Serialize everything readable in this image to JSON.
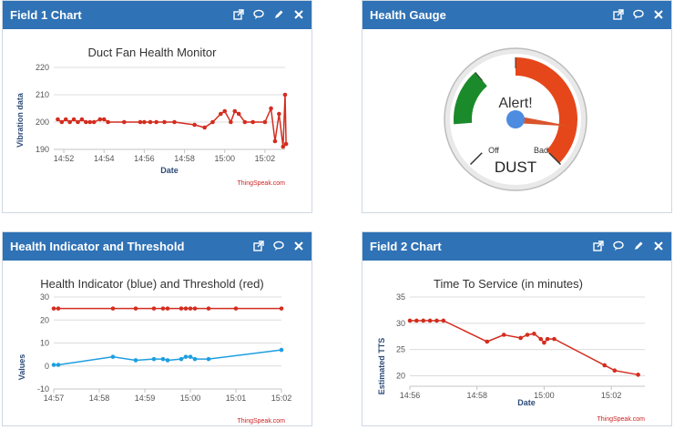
{
  "panels": {
    "field1": {
      "title": "Field 1 Chart",
      "chart_data": {
        "type": "line",
        "title": "Duct Fan Health Monitor",
        "xlabel": "Date",
        "ylabel": "Vibration data",
        "x_ticks": [
          "14:52",
          "14:54",
          "14:56",
          "14:58",
          "15:00",
          "15:02"
        ],
        "y_ticks": [
          190,
          200,
          210,
          220
        ],
        "ylim": [
          190,
          220
        ],
        "xlim": [
          "14:51.5",
          "15:03"
        ],
        "grid": true,
        "series": [
          {
            "color": "#d32d1f",
            "points": [
              [
                "14:51.7",
                201
              ],
              [
                "14:51.9",
                200
              ],
              [
                "14:52.1",
                201
              ],
              [
                "14:52.3",
                200
              ],
              [
                "14:52.5",
                201
              ],
              [
                "14:52.7",
                200
              ],
              [
                "14:52.9",
                201
              ],
              [
                "14:53.1",
                200
              ],
              [
                "14:53.3",
                200
              ],
              [
                "14:53.5",
                200
              ],
              [
                "14:53.8",
                201
              ],
              [
                "14:54.0",
                201
              ],
              [
                "14:54.2",
                200
              ],
              [
                "14:55.0",
                200
              ],
              [
                "14:55.8",
                200
              ],
              [
                "14:56.0",
                200
              ],
              [
                "14:56.3",
                200
              ],
              [
                "14:56.6",
                200
              ],
              [
                "14:57.0",
                200
              ],
              [
                "14:57.5",
                200
              ],
              [
                "14:58.5",
                199
              ],
              [
                "14:59.0",
                198
              ],
              [
                "14:59.4",
                200
              ],
              [
                "14:59.8",
                203
              ],
              [
                "15:00.0",
                204
              ],
              [
                "15:00.3",
                200
              ],
              [
                "15:00.5",
                204
              ],
              [
                "15:00.7",
                203
              ],
              [
                "15:01.0",
                200
              ],
              [
                "15:01.4",
                200
              ],
              [
                "15:02.0",
                200
              ],
              [
                "15:02.3",
                205
              ],
              [
                "15:02.5",
                193
              ],
              [
                "15:02.7",
                203
              ],
              [
                "15:02.9",
                191
              ],
              [
                "15:03.0",
                210
              ],
              [
                "15:03.05",
                192
              ]
            ]
          }
        ]
      },
      "credit": "ThingSpeak.com"
    },
    "gauge": {
      "title": "Health Gauge",
      "gauge_data": {
        "type": "gauge",
        "label_top": "Alert!",
        "label_bottom": "DUST",
        "min_label": "Off",
        "max_label": "Bad",
        "value_fraction": 0.86,
        "zones": [
          {
            "from": 0.15,
            "to": 0.35,
            "color": "#1b8a2a"
          },
          {
            "from": 0.5,
            "to": 1.0,
            "color": "#e5471a"
          }
        ]
      }
    },
    "indicator": {
      "title": "Health Indicator and Threshold",
      "chart_data": {
        "type": "line",
        "title": "Health Indicator (blue) and Threshold (red)",
        "xlabel": "",
        "ylabel": "Values",
        "x_ticks": [
          "14:57",
          "14:58",
          "14:59",
          "15:00",
          "15:01",
          "15:02"
        ],
        "y_ticks": [
          -10,
          0,
          10,
          20,
          30
        ],
        "ylim": [
          -10,
          30
        ],
        "xlim": [
          "14:57",
          "15:02"
        ],
        "grid": true,
        "series": [
          {
            "color": "#d32d1f",
            "points": [
              [
                "14:57.0",
                25
              ],
              [
                "14:57.1",
                25
              ],
              [
                "14:58.3",
                25
              ],
              [
                "14:58.8",
                25
              ],
              [
                "14:59.2",
                25
              ],
              [
                "14:59.4",
                25
              ],
              [
                "14:59.5",
                25
              ],
              [
                "14:59.8",
                25
              ],
              [
                "14:59.9",
                25
              ],
              [
                "15:00.0",
                25
              ],
              [
                "15:00.1",
                25
              ],
              [
                "15:00.4",
                25
              ],
              [
                "15:01.0",
                25
              ],
              [
                "15:02.0",
                25
              ]
            ]
          },
          {
            "color": "#1e9ee0",
            "points": [
              [
                "14:57.0",
                0.5
              ],
              [
                "14:57.1",
                0.5
              ],
              [
                "14:58.3",
                4
              ],
              [
                "14:58.8",
                2.5
              ],
              [
                "14:59.2",
                3
              ],
              [
                "14:59.4",
                3
              ],
              [
                "14:59.5",
                2.5
              ],
              [
                "14:59.8",
                3
              ],
              [
                "14:59.9",
                4
              ],
              [
                "15:00.0",
                4
              ],
              [
                "15:00.1",
                3
              ],
              [
                "15:00.4",
                3
              ],
              [
                "15:02.0",
                7
              ]
            ]
          }
        ]
      },
      "credit": "ThingSpeak.com"
    },
    "field2": {
      "title": "Field 2 Chart",
      "chart_data": {
        "type": "line",
        "title": "Time To Service (in minutes)",
        "xlabel": "Date",
        "ylabel": "Estimated TTS",
        "x_ticks": [
          "14:56",
          "14:58",
          "15:00",
          "15:02"
        ],
        "y_ticks": [
          20,
          25,
          30,
          35
        ],
        "ylim": [
          18,
          35
        ],
        "xlim": [
          "14:56",
          "15:03"
        ],
        "grid": true,
        "series": [
          {
            "color": "#d32d1f",
            "points": [
              [
                "14:56.0",
                30.5
              ],
              [
                "14:56.2",
                30.5
              ],
              [
                "14:56.4",
                30.5
              ],
              [
                "14:56.6",
                30.5
              ],
              [
                "14:56.8",
                30.5
              ],
              [
                "14:57.0",
                30.5
              ],
              [
                "14:58.3",
                26.5
              ],
              [
                "14:58.8",
                27.8
              ],
              [
                "14:59.3",
                27.2
              ],
              [
                "14:59.5",
                27.8
              ],
              [
                "14:59.7",
                28
              ],
              [
                "14:59.9",
                27
              ],
              [
                "15:00.0",
                26.3
              ],
              [
                "15:00.1",
                27
              ],
              [
                "15:00.3",
                27
              ],
              [
                "15:01.8",
                22
              ],
              [
                "15:02.1",
                21
              ],
              [
                "15:02.8",
                20.2
              ]
            ]
          }
        ]
      },
      "credit": "ThingSpeak.com"
    }
  }
}
